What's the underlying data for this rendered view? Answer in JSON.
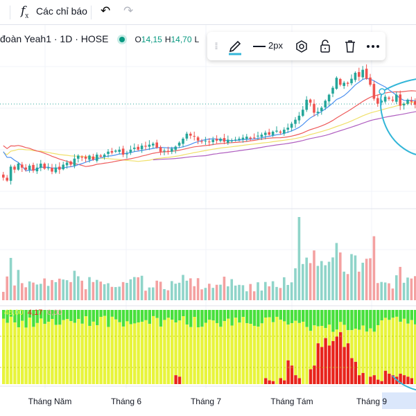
{
  "toolbar": {
    "indicators_label": "Các chỉ báo",
    "undo_icon": "undo-icon",
    "redo_icon": "redo-icon"
  },
  "legend": {
    "symbol_text": "đoàn Yeah1 · 1D · HOSE",
    "open_label": "O",
    "open_value": "14,15",
    "high_label": "H",
    "high_value": "14,70",
    "low_label": "L"
  },
  "drawing_toolbar": {
    "line_width_label": "2px",
    "icons": [
      "grip-icon",
      "pencil-icon",
      "line-width-icon",
      "settings-icon",
      "lock-icon",
      "trash-icon",
      "more-icon"
    ]
  },
  "indicator_values": {
    "first": "48,00",
    "second": "4,17",
    "third": "0,00"
  },
  "chart_data": {
    "type": "candlestick",
    "x_labels": [
      "Tháng Năm",
      "Tháng 6",
      "Tháng 7",
      "Tháng Tám",
      "Tháng 9"
    ],
    "colors": {
      "up": "#26a69a",
      "down": "#ef5350",
      "vol_up": "#8fd4c9",
      "vol_down": "#f4a1a1",
      "ma_blue": "#4a8ff0",
      "ma_red": "#ee5a5a",
      "ma_yellow": "#f0e06a",
      "ma_purple": "#b05fc0",
      "osc_green": "#48e03c",
      "osc_yellow": "#e8f43c",
      "osc_red": "#e8241c",
      "drawing": "#33b6d8"
    },
    "close": [
      11.5,
      11.2,
      12.6,
      12.3,
      12.9,
      12.5,
      12.3,
      12.7,
      12.2,
      12.5,
      12.9,
      12.4,
      12.5,
      12.1,
      12.5,
      12.3,
      12.8,
      13.0,
      12.8,
      13.4,
      13.7,
      13.5,
      13.4,
      13.7,
      13.3,
      13.8,
      13.6,
      13.8,
      14.1,
      14.0,
      14.2,
      14.3,
      13.8,
      13.9,
      14.3,
      14.5,
      14.3,
      14.7,
      14.6,
      14.8,
      14.9,
      14.5,
      14.1,
      14.2,
      14.1,
      14.4,
      14.6,
      15.0,
      15.4,
      15.9,
      15.7,
      15.6,
      15.2,
      15.1,
      15.2,
      15.1,
      15.3,
      15.2,
      15.4,
      15.1,
      15.3,
      15.2,
      15.3,
      15.4,
      15.5,
      15.6,
      15.4,
      15.5,
      15.7,
      15.8,
      16.0,
      15.8,
      16.1,
      16.2,
      16.0,
      16.3,
      16.5,
      16.9,
      17.3,
      17.7,
      18.3,
      19.3,
      19.0,
      18.0,
      18.1,
      18.5,
      19.2,
      19.8,
      20.5,
      21.5,
      20.8,
      21.0,
      20.9,
      21.4,
      22.0,
      21.6,
      22.3,
      21.4,
      20.8,
      19.4,
      18.9,
      19.2,
      19.6,
      19.4,
      19.2,
      19.8,
      18.7,
      18.9,
      19.3,
      19.1,
      18.8,
      18.9
    ],
    "osc_red_levels": [
      0,
      0,
      0,
      0,
      0,
      0,
      0,
      0,
      0,
      0,
      0,
      0,
      0,
      0,
      0,
      0,
      0,
      0,
      0,
      0,
      0,
      0,
      0,
      0,
      0,
      0,
      0,
      0,
      0,
      0,
      0,
      0,
      0,
      0,
      0,
      0,
      0,
      0,
      0,
      0,
      0,
      0,
      0,
      0,
      0,
      0,
      0.12,
      0.1,
      0,
      0,
      0,
      0,
      0,
      0,
      0,
      0,
      0,
      0,
      0,
      0,
      0,
      0,
      0,
      0,
      0,
      0,
      0,
      0,
      0,
      0,
      0.08,
      0.05,
      0.04,
      0,
      0.08,
      0.05,
      0.32,
      0.25,
      0.12,
      0.08,
      0,
      0,
      0.2,
      0.25,
      0.55,
      0.5,
      0.62,
      0.52,
      0.58,
      0.64,
      0.7,
      0.5,
      0.55,
      0.35,
      0.3,
      0.12,
      0.15,
      0,
      0.1,
      0.12,
      0.06,
      0.04,
      0.18,
      0.14,
      0.12,
      0.1,
      0.14,
      0.12,
      0.1,
      0.08
    ]
  }
}
